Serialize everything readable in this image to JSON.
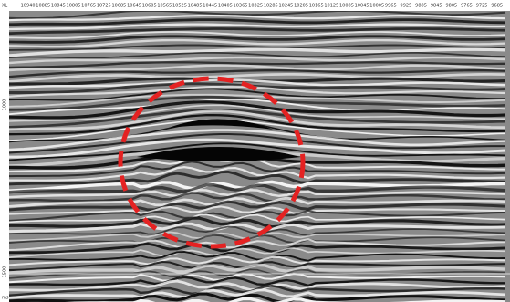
{
  "header": {
    "xl_labels": [
      "XL",
      "10940",
      "10885",
      "10845",
      "10805",
      "10765",
      "10725",
      "10685",
      "10645",
      "10605",
      "10565",
      "10525",
      "10485",
      "10445",
      "10405",
      "10365",
      "10325",
      "10285",
      "10245",
      "10205",
      "10165",
      "10125",
      "10085",
      "10045",
      "10005",
      "9965",
      "9925",
      "9885",
      "9845",
      "9805",
      "9765",
      "9725",
      "9685"
    ]
  },
  "side": {
    "time_labels": [
      "1000",
      "1500"
    ],
    "unit": "ms"
  }
}
